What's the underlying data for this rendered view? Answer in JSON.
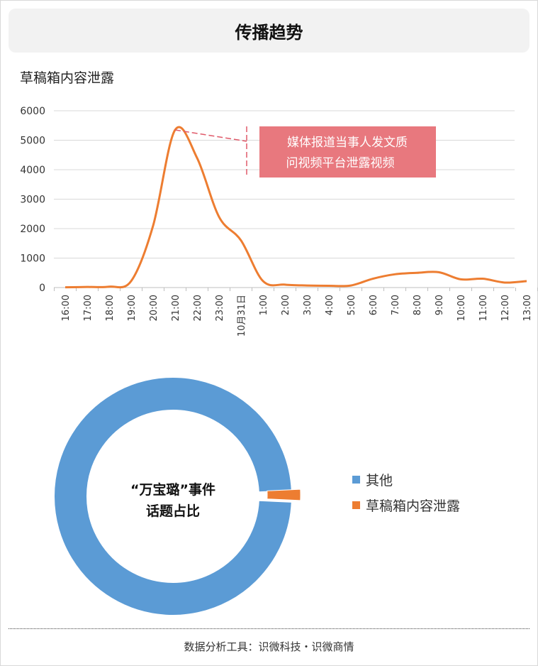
{
  "header": {
    "title": "传播趋势"
  },
  "line_chart": {
    "subtitle": "草稿箱内容泄露"
  },
  "callout": {
    "line1": "媒体报道当事人发文质",
    "line2": "问视频平台泄露视频"
  },
  "donut": {
    "center_line1": "“万宝璐”事件",
    "center_line2": "话题占比"
  },
  "footer": {
    "text": "数据分析工具：识微科技・识微商情"
  },
  "colors": {
    "line": "#ed7d31",
    "donut_other": "#5b9bd5",
    "donut_leak": "#ed7d31",
    "callout_bg": "#e8787e"
  },
  "chart_data": [
    {
      "type": "line",
      "title": "草稿箱内容泄露",
      "xlabel": "",
      "ylabel": "",
      "categories": [
        "16:00",
        "17:00",
        "18:00",
        "19:00",
        "20:00",
        "21:00",
        "22:00",
        "23:00",
        "10月31日",
        "1:00",
        "2:00",
        "3:00",
        "4:00",
        "5:00",
        "6:00",
        "7:00",
        "8:00",
        "9:00",
        "10:00",
        "11:00",
        "12:00",
        "13:00"
      ],
      "values": [
        10,
        20,
        30,
        220,
        2100,
        5350,
        4400,
        2400,
        1600,
        220,
        100,
        70,
        60,
        70,
        300,
        450,
        500,
        520,
        280,
        300,
        170,
        220
      ],
      "ylim": [
        0,
        6000
      ],
      "yticks": [
        0,
        1000,
        2000,
        3000,
        4000,
        5000,
        6000
      ],
      "grid": true,
      "annotation": "媒体报道当事人发文质问视频平台泄露视频"
    },
    {
      "type": "pie",
      "title": "“万宝璐”事件话题占比",
      "labels": [
        "其他",
        "草稿箱内容泄露"
      ],
      "values": [
        98.5,
        1.5
      ],
      "legend": "right"
    }
  ]
}
